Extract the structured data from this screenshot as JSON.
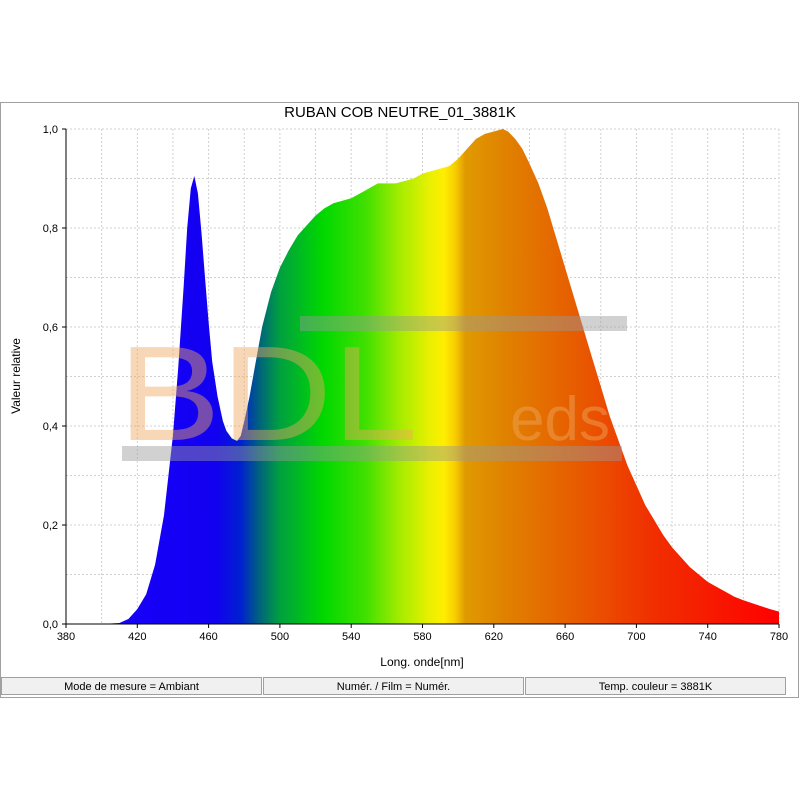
{
  "chart_data": {
    "type": "area",
    "title": "RUBAN COB NEUTRE_01_3881K",
    "xlabel": "Long. onde[nm]",
    "ylabel": "Valeur relative",
    "xlim": [
      380,
      780
    ],
    "ylim": [
      0,
      1.0
    ],
    "x_ticks": [
      380,
      420,
      460,
      500,
      540,
      580,
      620,
      660,
      700,
      740,
      780
    ],
    "x_tick_labels": [
      "380",
      "420",
      "460",
      "500",
      "540",
      "580",
      "620",
      "660",
      "700",
      "740",
      "780"
    ],
    "y_ticks": [
      0,
      0.2,
      0.4,
      0.6,
      0.8,
      1.0
    ],
    "y_tick_labels": [
      "0,0",
      "0,2",
      "0,4",
      "0,6",
      "0,8",
      "1,0"
    ],
    "grid": true,
    "legend": "none",
    "fill": "spectral color gradient",
    "series": [
      {
        "x": [
          380,
          400,
          410,
          415,
          420,
          425,
          430,
          435,
          440,
          443,
          446,
          448,
          450,
          452,
          454,
          456,
          458,
          460,
          462,
          465,
          468,
          470,
          473,
          476,
          478,
          480,
          483,
          486,
          490,
          495,
          500,
          505,
          510,
          515,
          520,
          525,
          530,
          535,
          540,
          545,
          550,
          555,
          560,
          565,
          570,
          575,
          580,
          585,
          590,
          595,
          600,
          605,
          610,
          615,
          620,
          625,
          628,
          632,
          636,
          640,
          645,
          650,
          655,
          660,
          665,
          670,
          675,
          680,
          685,
          690,
          695,
          700,
          705,
          710,
          715,
          720,
          725,
          730,
          735,
          740,
          745,
          750,
          755,
          760,
          765,
          770,
          775,
          780
        ],
        "y": [
          0,
          0,
          0.002,
          0.01,
          0.03,
          0.06,
          0.12,
          0.22,
          0.38,
          0.52,
          0.68,
          0.8,
          0.88,
          0.905,
          0.87,
          0.79,
          0.7,
          0.61,
          0.53,
          0.46,
          0.41,
          0.39,
          0.375,
          0.37,
          0.38,
          0.41,
          0.46,
          0.52,
          0.6,
          0.67,
          0.72,
          0.755,
          0.785,
          0.805,
          0.825,
          0.84,
          0.85,
          0.855,
          0.86,
          0.87,
          0.88,
          0.89,
          0.89,
          0.89,
          0.895,
          0.9,
          0.91,
          0.915,
          0.92,
          0.925,
          0.94,
          0.96,
          0.98,
          0.99,
          0.995,
          1.0,
          0.995,
          0.98,
          0.96,
          0.93,
          0.89,
          0.84,
          0.78,
          0.72,
          0.66,
          0.6,
          0.54,
          0.48,
          0.42,
          0.37,
          0.32,
          0.28,
          0.24,
          0.21,
          0.18,
          0.155,
          0.135,
          0.115,
          0.1,
          0.085,
          0.075,
          0.065,
          0.055,
          0.048,
          0.042,
          0.036,
          0.03,
          0.025
        ]
      }
    ]
  },
  "watermark": {
    "text_main": "BDL",
    "text_small": "eds"
  },
  "status_bar": {
    "mode": "Mode de mesure = Ambiant",
    "numer": "Numér. / Film = Numér.",
    "temp": "Temp. couleur = 3881K"
  }
}
